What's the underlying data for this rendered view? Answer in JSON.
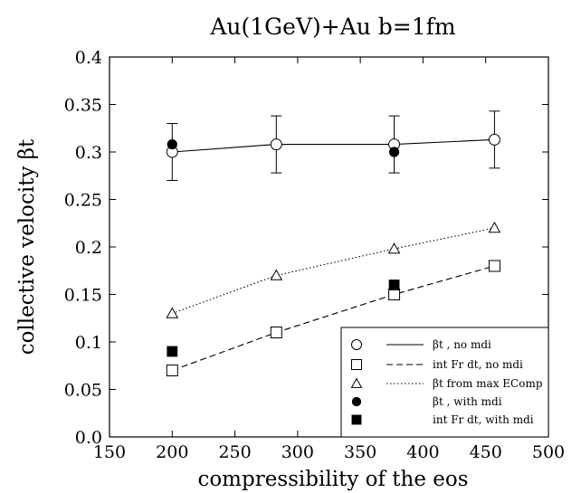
{
  "chart_data": {
    "type": "line",
    "title": "Au(1GeV)+Au b=1fm",
    "xlabel": "compressibility of the eos",
    "ylabel": "collective velocity βt",
    "xlim": [
      150,
      500
    ],
    "ylim": [
      0.0,
      0.4
    ],
    "x_ticks": [
      "150",
      "200",
      "250",
      "300",
      "350",
      "400",
      "450",
      "500"
    ],
    "y_ticks": [
      "0.0",
      "0.05",
      "0.1",
      "0.15",
      "0.2",
      "0.25",
      "0.3",
      "0.35",
      "0.4"
    ],
    "grid": false,
    "legend_position": "bottom-right",
    "series": [
      {
        "name": "βt , no mdi",
        "marker": "open-circle",
        "line": "solid",
        "x": [
          200,
          283,
          377,
          457
        ],
        "y": [
          0.3,
          0.308,
          0.308,
          0.313
        ],
        "error": [
          0.03,
          0.03,
          0.03,
          0.03
        ]
      },
      {
        "name": "int Fr dt, no mdi",
        "marker": "open-square",
        "line": "dashed",
        "x": [
          200,
          283,
          377,
          457
        ],
        "y": [
          0.07,
          0.11,
          0.15,
          0.18
        ]
      },
      {
        "name": "βt from max EComp",
        "marker": "open-triangle",
        "line": "dotted",
        "x": [
          200,
          283,
          377,
          457
        ],
        "y": [
          0.13,
          0.17,
          0.198,
          0.22
        ]
      },
      {
        "name": "βt , with mdi",
        "marker": "filled-circle",
        "line": "none",
        "x": [
          200,
          377
        ],
        "y": [
          0.308,
          0.3
        ]
      },
      {
        "name": "int Fr dt, with mdi",
        "marker": "filled-square",
        "line": "none",
        "x": [
          200,
          377
        ],
        "y": [
          0.09,
          0.16
        ]
      }
    ]
  }
}
